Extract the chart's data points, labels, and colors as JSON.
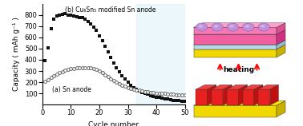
{
  "title": "",
  "xlabel": "Cycle number",
  "ylabel": "Capacity ( mAh g⁻¹ )",
  "xlim": [
    0,
    50
  ],
  "ylim": [
    0,
    900
  ],
  "yticks": [
    100,
    200,
    300,
    400,
    500,
    600,
    700,
    800
  ],
  "xticks": [
    0,
    10,
    20,
    30,
    40,
    50
  ],
  "series_b_x": [
    1,
    2,
    3,
    4,
    5,
    6,
    7,
    8,
    9,
    10,
    11,
    12,
    13,
    14,
    15,
    16,
    17,
    18,
    19,
    20,
    21,
    22,
    23,
    24,
    25,
    26,
    27,
    28,
    29,
    30,
    31,
    32,
    33,
    34,
    35,
    36,
    37,
    38,
    39,
    40,
    41,
    42,
    43,
    44,
    45,
    46,
    47,
    48,
    49,
    50
  ],
  "series_b_y": [
    390,
    510,
    680,
    760,
    790,
    800,
    805,
    810,
    800,
    795,
    790,
    785,
    780,
    775,
    760,
    745,
    720,
    695,
    660,
    615,
    570,
    520,
    470,
    420,
    370,
    330,
    290,
    260,
    230,
    200,
    170,
    150,
    135,
    120,
    110,
    100,
    90,
    82,
    75,
    68,
    62,
    56,
    52,
    48,
    44,
    40,
    38,
    35,
    33,
    30
  ],
  "series_a_x": [
    1,
    2,
    3,
    4,
    5,
    6,
    7,
    8,
    9,
    10,
    11,
    12,
    13,
    14,
    15,
    16,
    17,
    18,
    19,
    20,
    21,
    22,
    23,
    24,
    25,
    26,
    27,
    28,
    29,
    30,
    31,
    32,
    33,
    34,
    35,
    36,
    37,
    38,
    39,
    40,
    41,
    42,
    43,
    44,
    45,
    46,
    47,
    48,
    49,
    50
  ],
  "series_a_y": [
    205,
    220,
    240,
    260,
    275,
    285,
    295,
    305,
    312,
    318,
    322,
    326,
    329,
    331,
    332,
    330,
    326,
    320,
    312,
    300,
    285,
    268,
    250,
    232,
    215,
    200,
    187,
    175,
    164,
    154,
    145,
    138,
    132,
    127,
    122,
    118,
    114,
    110,
    107,
    104,
    102,
    100,
    98,
    95,
    93,
    91,
    89,
    87,
    85,
    83
  ],
  "green_start_x": 33,
  "series_b_color": "#111111",
  "series_a_color": "#666666",
  "label_b": "(b) Cu₆Sn₅ modified Sn anode",
  "label_a": "(a) Sn anode",
  "bg_rect_color": "#c8eaf5",
  "green_color": "#55cc22",
  "fontsize_label": 6.5,
  "fontsize_tick": 6,
  "fontsize_annot": 5.5
}
